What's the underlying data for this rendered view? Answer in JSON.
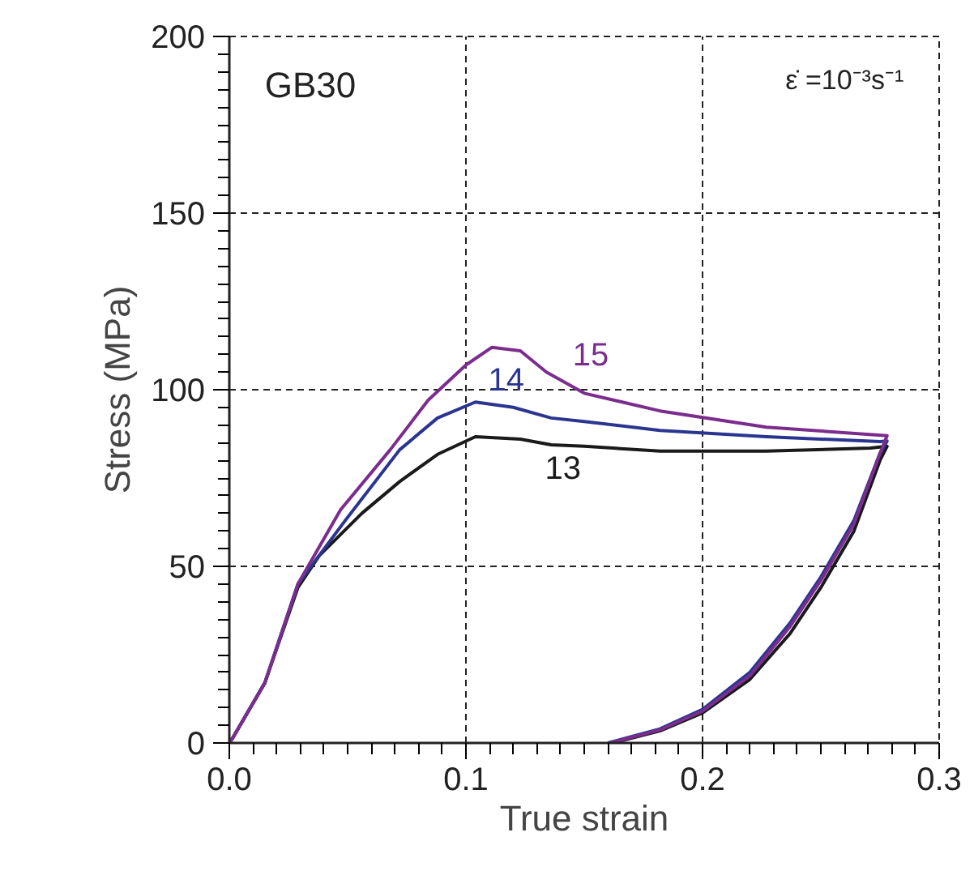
{
  "chart_data": {
    "type": "line",
    "xlabel": "True strain",
    "ylabel": "Stress (MPa)",
    "xlim": [
      0,
      0.3
    ],
    "ylim": [
      0,
      200
    ],
    "xticks": [
      {
        "value": 0,
        "label": "0.0"
      },
      0.1,
      0.2,
      0.3
    ],
    "yticks": [
      0,
      50,
      100,
      150,
      200
    ],
    "grid": true,
    "legend": false,
    "marker": "none",
    "line_style": "solid",
    "annotations": [
      "GB30",
      "ε̇ =10⁻³s⁻¹"
    ],
    "series": [
      {
        "name": "13",
        "color": "#1a1a1a",
        "x": [
          0,
          0.0014,
          0.015,
          0.029,
          0.038,
          0.056,
          0.072,
          0.088,
          0.104,
          0.123,
          0.136,
          0.15,
          0.182,
          0.227,
          0.271,
          0.278,
          0.275,
          0.264,
          0.25,
          0.237,
          0.22,
          0.2,
          0.182,
          0.162
        ],
        "values": [
          0,
          1.4,
          17,
          44,
          53,
          65,
          74,
          81.7,
          86.7,
          86,
          84.4,
          84,
          82.6,
          82.6,
          83.5,
          84,
          80,
          60,
          44,
          31,
          18,
          8.5,
          3.4,
          0
        ]
      },
      {
        "name": "14",
        "color": "#2b3590",
        "x": [
          0,
          0.0014,
          0.015,
          0.029,
          0.049,
          0.072,
          0.088,
          0.104,
          0.12,
          0.136,
          0.15,
          0.182,
          0.227,
          0.275,
          0.278,
          0.275,
          0.264,
          0.25,
          0.237,
          0.22,
          0.2,
          0.182,
          0.16
        ],
        "values": [
          0,
          1.4,
          17,
          45,
          63,
          83,
          92,
          96.5,
          95,
          92,
          91,
          88.5,
          86.7,
          85.3,
          85.5,
          82,
          63,
          47,
          34,
          20,
          9.5,
          4,
          0
        ]
      },
      {
        "name": "15",
        "color": "#7b2d8e",
        "x": [
          0,
          0.0014,
          0.015,
          0.029,
          0.047,
          0.068,
          0.084,
          0.1,
          0.111,
          0.123,
          0.134,
          0.15,
          0.182,
          0.227,
          0.278,
          0.275,
          0.264,
          0.25,
          0.237,
          0.22,
          0.2,
          0.182,
          0.161
        ],
        "values": [
          0,
          1.4,
          17,
          45,
          66,
          83,
          97,
          107,
          112,
          111,
          105,
          99,
          94,
          89.4,
          87,
          82,
          62,
          46,
          33,
          19,
          9,
          3.7,
          0
        ]
      }
    ]
  }
}
